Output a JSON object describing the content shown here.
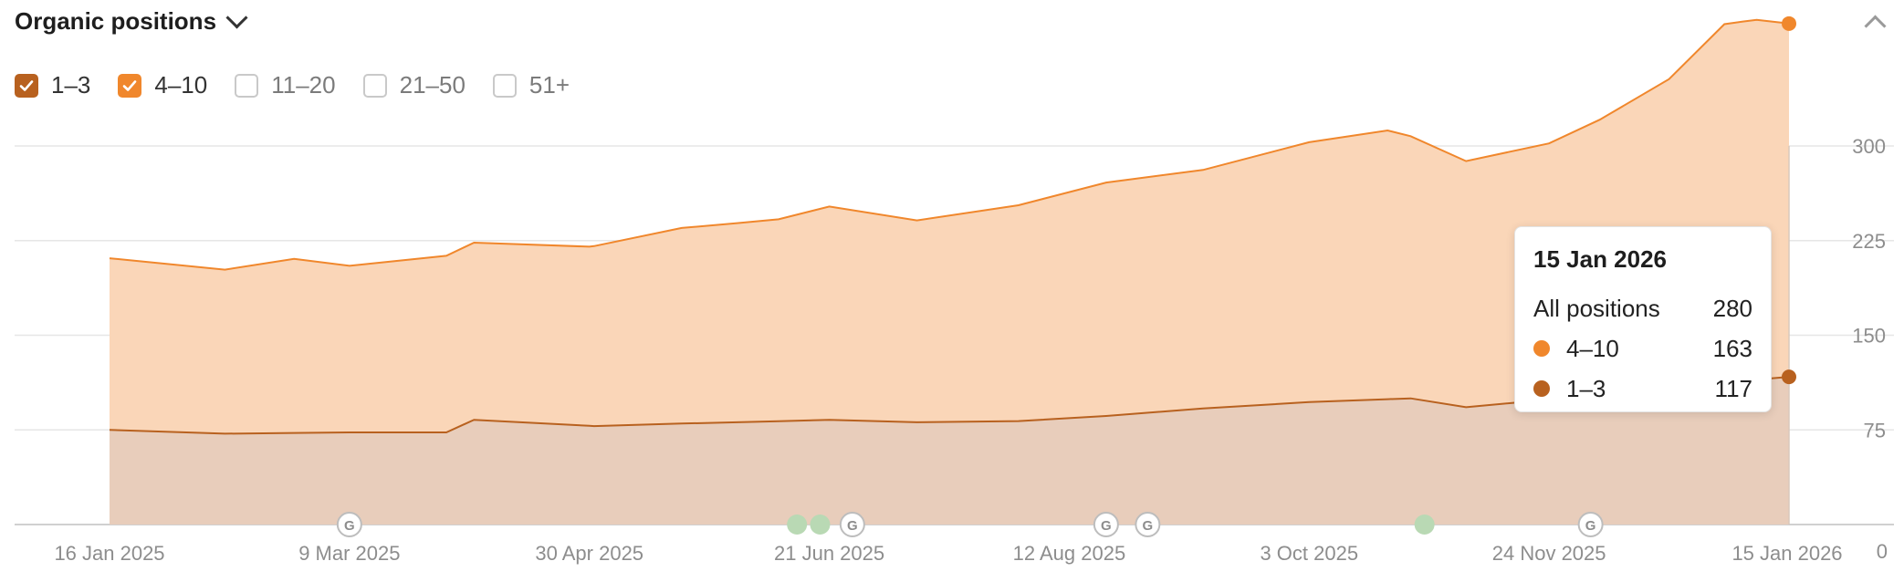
{
  "header": {
    "title": "Organic positions"
  },
  "filters": [
    {
      "label": "1–3",
      "checked": true,
      "color": "#b8611f"
    },
    {
      "label": "4–10",
      "checked": true,
      "color": "#f0872c"
    },
    {
      "label": "11–20",
      "checked": false,
      "color": "#cccccc"
    },
    {
      "label": "21–50",
      "checked": false,
      "color": "#cccccc"
    },
    {
      "label": "51+",
      "checked": false,
      "color": "#cccccc"
    }
  ],
  "icons": {
    "collapse": "chevron-up-icon",
    "title_menu": "chevron-down-icon",
    "google_update": "google-g-icon"
  },
  "tooltip": {
    "date": "15 Jan 2026",
    "rows": [
      {
        "label": "All positions",
        "value": "280",
        "color": ""
      },
      {
        "label": "4–10",
        "value": "163",
        "color": "#f0872c"
      },
      {
        "label": "1–3",
        "value": "117",
        "color": "#b8611f"
      }
    ]
  },
  "chart_data": {
    "type": "area",
    "stacked": true,
    "x_axis": {
      "min": "2025-01-16",
      "max": "2026-01-15",
      "ticks": [
        "16 Jan 2025",
        "9 Mar 2025",
        "30 Apr 2025",
        "21 Jun 2025",
        "12 Aug 2025",
        "3 Oct 2025",
        "24 Nov 2025",
        "15 Jan 2026"
      ]
    },
    "y_axis": {
      "range": [
        0,
        300
      ],
      "ticks": [
        "0",
        "75",
        "150",
        "225",
        "300"
      ],
      "position": "right",
      "grid": true
    },
    "series": [
      {
        "name": "1–3",
        "color": "#b8611f",
        "fill": "#e8cdbb",
        "points": [
          [
            "2025-01-16",
            75
          ],
          [
            "2025-02-10",
            72
          ],
          [
            "2025-03-09",
            73
          ],
          [
            "2025-03-30",
            73
          ],
          [
            "2025-04-05",
            83
          ],
          [
            "2025-05-01",
            78
          ],
          [
            "2025-05-20",
            80
          ],
          [
            "2025-06-01",
            81
          ],
          [
            "2025-06-21",
            83
          ],
          [
            "2025-07-10",
            81
          ],
          [
            "2025-08-01",
            82
          ],
          [
            "2025-08-20",
            86
          ],
          [
            "2025-09-10",
            92
          ],
          [
            "2025-10-03",
            97
          ],
          [
            "2025-10-25",
            100
          ],
          [
            "2025-11-06",
            93
          ],
          [
            "2025-11-24",
            99
          ],
          [
            "2025-12-20",
            108
          ],
          [
            "2026-01-05",
            114
          ],
          [
            "2026-01-15",
            117
          ]
        ]
      },
      {
        "name": "4–10",
        "color": "#f0872c",
        "fill": "#fad6b8",
        "points": [
          [
            "2025-01-16",
            136
          ],
          [
            "2025-02-10",
            130
          ],
          [
            "2025-02-25",
            138
          ],
          [
            "2025-03-09",
            132
          ],
          [
            "2025-03-30",
            140
          ],
          [
            "2025-04-30",
            142
          ],
          [
            "2025-05-20",
            155
          ],
          [
            "2025-06-10",
            160
          ],
          [
            "2025-06-21",
            169
          ],
          [
            "2025-07-10",
            160
          ],
          [
            "2025-08-01",
            171
          ],
          [
            "2025-08-20",
            185
          ],
          [
            "2025-09-10",
            189
          ],
          [
            "2025-10-03",
            206
          ],
          [
            "2025-10-20",
            213
          ],
          [
            "2025-11-06",
            195
          ],
          [
            "2025-11-24",
            203
          ],
          [
            "2025-12-05",
            218
          ],
          [
            "2025-12-20",
            245
          ],
          [
            "2026-01-01",
            284
          ],
          [
            "2026-01-08",
            285
          ],
          [
            "2026-01-15",
            280
          ]
        ]
      }
    ],
    "annotations": [
      {
        "date": "2025-03-09",
        "type": "google-update"
      },
      {
        "date": "2025-06-14",
        "type": "event"
      },
      {
        "date": "2025-06-19",
        "type": "event"
      },
      {
        "date": "2025-06-26",
        "type": "google-update"
      },
      {
        "date": "2025-08-20",
        "type": "google-update"
      },
      {
        "date": "2025-08-29",
        "type": "google-update"
      },
      {
        "date": "2025-10-28",
        "type": "event"
      },
      {
        "date": "2025-12-03",
        "type": "google-update"
      }
    ],
    "hover": {
      "date": "2026-01-15"
    }
  }
}
